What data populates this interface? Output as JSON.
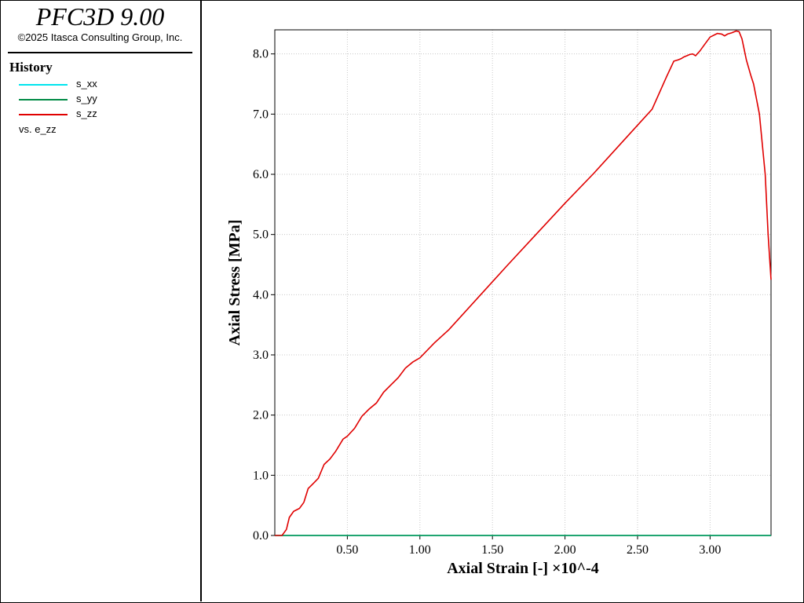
{
  "app": {
    "title": "PFC3D 9.00",
    "copyright": "©2025 Itasca Consulting Group, Inc."
  },
  "legend": {
    "title": "History",
    "items": [
      {
        "label": "s_xx",
        "color": "#00e5ee"
      },
      {
        "label": "s_yy",
        "color": "#008b45"
      },
      {
        "label": "s_zz",
        "color": "#e00000"
      }
    ],
    "vs_label": "vs. e_zz"
  },
  "chart_data": {
    "type": "line",
    "xlabel": "Axial Strain [-] ×10^-4",
    "ylabel": "Axial Stress [MPa]",
    "xlim": [
      0,
      3.42
    ],
    "ylim": [
      0,
      8.4
    ],
    "xticks": [
      "0.50",
      "1.00",
      "1.50",
      "2.00",
      "2.50",
      "3.00"
    ],
    "yticks": [
      "0.0",
      "1.0",
      "2.0",
      "3.0",
      "4.0",
      "5.0",
      "6.0",
      "7.0",
      "8.0"
    ],
    "grid": true,
    "series": [
      {
        "name": "s_xx",
        "color": "#00e5ee",
        "x": [
          0,
          3.42
        ],
        "y": [
          0,
          0
        ]
      },
      {
        "name": "s_yy",
        "color": "#008b45",
        "x": [
          0,
          3.42
        ],
        "y": [
          0,
          0
        ]
      },
      {
        "name": "s_zz",
        "color": "#e00000",
        "x": [
          0,
          0.05,
          0.08,
          0.1,
          0.13,
          0.17,
          0.2,
          0.23,
          0.26,
          0.3,
          0.34,
          0.38,
          0.42,
          0.47,
          0.5,
          0.55,
          0.6,
          0.65,
          0.7,
          0.75,
          0.8,
          0.85,
          0.9,
          0.95,
          1.0,
          1.1,
          1.2,
          1.4,
          1.6,
          1.8,
          2.0,
          2.2,
          2.4,
          2.6,
          2.7,
          2.75,
          2.78,
          2.8,
          2.82,
          2.84,
          2.86,
          2.88,
          2.9,
          2.93,
          2.96,
          3.0,
          3.05,
          3.08,
          3.1,
          3.12,
          3.15,
          3.18,
          3.2,
          3.22,
          3.25,
          3.28,
          3.3,
          3.34,
          3.38,
          3.4,
          3.42
        ],
        "y": [
          0,
          0.0,
          0.1,
          0.3,
          0.4,
          0.45,
          0.55,
          0.78,
          0.85,
          0.95,
          1.18,
          1.27,
          1.4,
          1.6,
          1.65,
          1.78,
          1.98,
          2.1,
          2.2,
          2.38,
          2.5,
          2.62,
          2.78,
          2.88,
          2.95,
          3.2,
          3.42,
          3.95,
          4.48,
          5.0,
          5.52,
          6.02,
          6.55,
          7.08,
          7.62,
          7.88,
          7.9,
          7.92,
          7.95,
          7.97,
          7.99,
          8.0,
          7.97,
          8.05,
          8.15,
          8.28,
          8.34,
          8.33,
          8.3,
          8.33,
          8.35,
          8.38,
          8.37,
          8.25,
          7.9,
          7.65,
          7.5,
          7.0,
          6.0,
          5.0,
          4.25
        ]
      }
    ]
  }
}
